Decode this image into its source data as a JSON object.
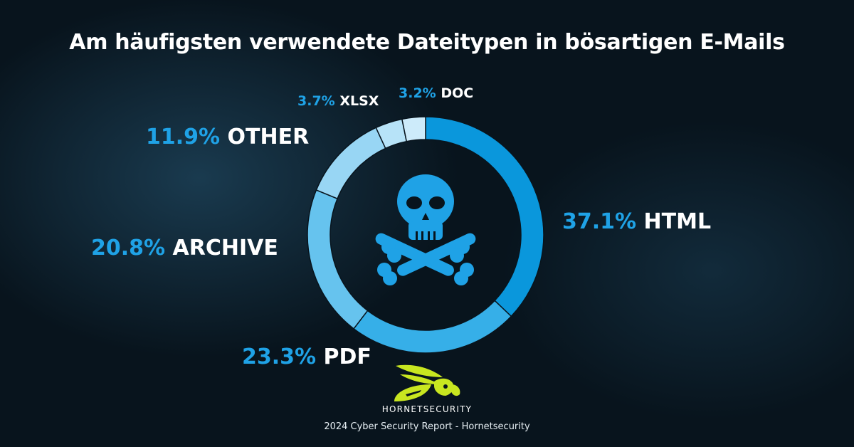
{
  "title": "Am häufigsten verwendete Dateitypen in bösartigen E-Mails",
  "chart_data": {
    "type": "pie",
    "style": "donut",
    "slices": [
      {
        "label": "HTML",
        "value": 37.1,
        "value_label": "37.1%",
        "color": "#0a97dc"
      },
      {
        "label": "PDF",
        "value": 23.3,
        "value_label": "23.3%",
        "color": "#36afe8"
      },
      {
        "label": "ARCHIVE",
        "value": 20.8,
        "value_label": "20.8%",
        "color": "#66c3ee"
      },
      {
        "label": "OTHER",
        "value": 11.9,
        "value_label": "11.9%",
        "color": "#98d6f4"
      },
      {
        "label": "XLSX",
        "value": 3.7,
        "value_label": "3.7%",
        "color": "#b7e3f8"
      },
      {
        "label": "DOC",
        "value": 3.2,
        "value_label": "3.2%",
        "color": "#cdebfa"
      }
    ],
    "center_icon": "skull-crossbones-icon",
    "center_icon_color": "#1fa2e6"
  },
  "brand": "HORNETSECURITY",
  "logo_icon": "hornet-logo-icon",
  "source": "2024 Cyber Security Report - Hornetsecurity",
  "colors": {
    "accent": "#1fa2e6",
    "logo": "#c8e620"
  }
}
